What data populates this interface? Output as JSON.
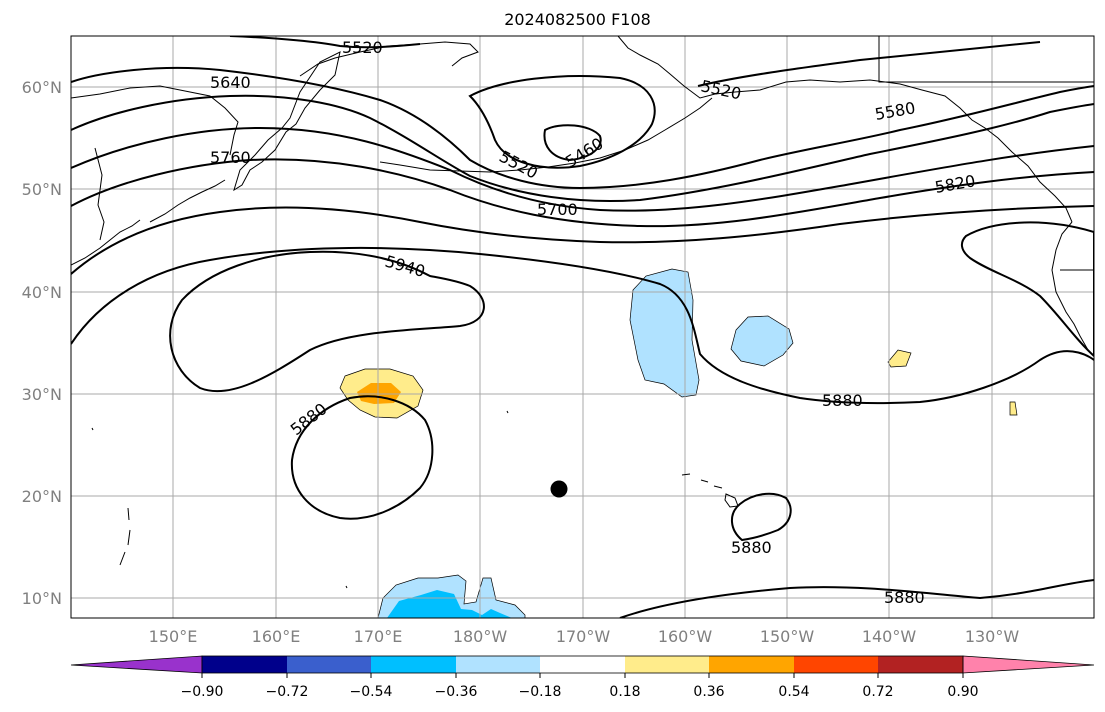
{
  "title": "2024082500 F108",
  "latitude_labels": [
    "60°N",
    "50°N",
    "40°N",
    "30°N",
    "20°N",
    "10°N"
  ],
  "longitude_labels": [
    "150°E",
    "160°E",
    "170°E",
    "180°W",
    "170°W",
    "160°W",
    "150°W",
    "140°W",
    "130°W"
  ],
  "contour_labels": [
    "5520",
    "5640",
    "5760",
    "5520",
    "5520",
    "5460",
    "5580",
    "5700",
    "5820",
    "5940",
    "5880",
    "5880",
    "5880",
    "5880"
  ],
  "colorbar": {
    "ticks": [
      "−0.90",
      "−0.72",
      "−0.54",
      "−0.36",
      "−0.18",
      "0.18",
      "0.36",
      "0.54",
      "0.72",
      "0.90"
    ],
    "colors": [
      "#9932cc",
      "#00008b",
      "#3a5fcd",
      "#00bfff",
      "#b0e2ff",
      "#ffffff",
      "#ffec8b",
      "#ffa500",
      "#ff4500",
      "#b22222",
      "#ff82ab"
    ]
  },
  "marker": {
    "name": "black-dot",
    "lon": -172.8,
    "lat": 20.7
  }
}
